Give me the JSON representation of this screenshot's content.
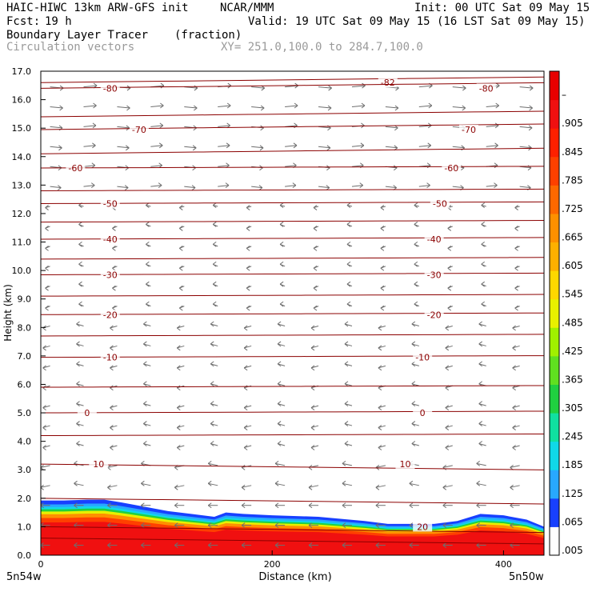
{
  "header": {
    "title_left": "HAIC-HIWC 13km ARW-GFS init",
    "org": "NCAR/MMM",
    "init": "Init: 00 UTC Sat 09 May 15",
    "fcst_label": "Fcst:",
    "fcst_value": "19 h",
    "valid": "Valid: 19 UTC Sat 09 May 15 (16 LST Sat 09 May 15)",
    "field": "Boundary Layer Tracer",
    "units": "(fraction)",
    "vectors": "Circulation vectors",
    "xy": "XY= 251.0,100.0 to 284.7,100.0"
  },
  "chart_data": {
    "type": "heatmap",
    "ylabel": "Height (km)",
    "xlabel": "Distance (km)",
    "xlim": [
      0,
      435
    ],
    "ylim": [
      0,
      17
    ],
    "x_ticks": [
      "0",
      "200",
      "400"
    ],
    "y_ticks": [
      "0.0",
      "1.0",
      "2.0",
      "3.0",
      "4.0",
      "5.0",
      "6.0",
      "7.0",
      "8.0",
      "9.0",
      "10.0",
      "11.0",
      "12.0",
      "13.0",
      "14.0",
      "15.0",
      "16.0",
      "17.0"
    ],
    "corner_labels": {
      "left": "5n54w",
      "right": "5n50w"
    },
    "colorbar": {
      "labels": [
        ".005",
        ".065",
        ".125",
        ".185",
        ".245",
        ".305",
        ".365",
        ".425",
        ".485",
        ".545",
        ".605",
        ".665",
        ".725",
        ".785",
        ".845",
        ".905",
        "–"
      ],
      "colors": [
        "#ffffff",
        "#1840ff",
        "#28a8ff",
        "#10d8e8",
        "#10e0a0",
        "#20d040",
        "#60e020",
        "#a0f000",
        "#e8f000",
        "#ffd800",
        "#ffb000",
        "#ff9000",
        "#ff6800",
        "#ff4000",
        "#ff2000",
        "#f01010",
        "#e80000"
      ]
    },
    "contours": {
      "color": "#8b0000",
      "levels": [
        {
          "label": "-82",
          "height_km": 16.6,
          "label_x_km": [
            300
          ]
        },
        {
          "label": "-80",
          "height_km": 16.4,
          "label_x_km": [
            60,
            385
          ]
        },
        {
          "label": "-70",
          "height_km": 14.95,
          "label_x_km": [
            85,
            370
          ]
        },
        {
          "label": "-60",
          "height_km": 13.6,
          "label_x_km": [
            30,
            355
          ]
        },
        {
          "label": "-50",
          "height_km": 12.35,
          "label_x_km": [
            60,
            345
          ]
        },
        {
          "label": "-40",
          "height_km": 11.1,
          "label_x_km": [
            60,
            340
          ]
        },
        {
          "label": "-30",
          "height_km": 9.85,
          "label_x_km": [
            60,
            340
          ]
        },
        {
          "label": "-20",
          "height_km": 8.45,
          "label_x_km": [
            60,
            340
          ]
        },
        {
          "label": "-10",
          "height_km": 6.95,
          "label_x_km": [
            60,
            330
          ]
        },
        {
          "label": "0",
          "height_km": 5.0,
          "label_x_km": [
            40,
            330
          ]
        },
        {
          "label": "10",
          "height_km": 3.2,
          "label_x_km": [
            50,
            315
          ]
        },
        {
          "label": "20",
          "height_km": 1.0,
          "label_x_km": [
            330
          ]
        }
      ],
      "unlabeled_heights_km": [
        15.4,
        14.1,
        12.8,
        11.7,
        10.4,
        9.1,
        7.7,
        5.9,
        4.2,
        2.0,
        0.6
      ]
    },
    "tracer_layer": {
      "x_km": [
        0,
        20,
        40,
        55,
        70,
        90,
        110,
        130,
        150,
        160,
        175,
        200,
        240,
        280,
        300,
        340,
        360,
        380,
        400,
        420,
        435
      ],
      "top_km": [
        1.92,
        1.92,
        1.95,
        1.95,
        1.85,
        1.7,
        1.55,
        1.45,
        1.35,
        1.5,
        1.45,
        1.4,
        1.35,
        1.2,
        1.1,
        1.1,
        1.2,
        1.45,
        1.4,
        1.25,
        1.0
      ]
    }
  }
}
